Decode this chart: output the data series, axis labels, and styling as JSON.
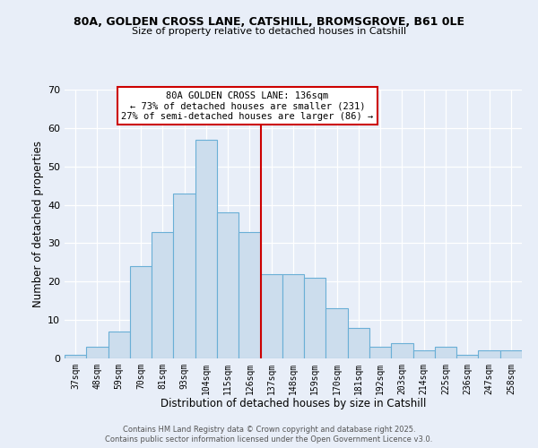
{
  "title_line1": "80A, GOLDEN CROSS LANE, CATSHILL, BROMSGROVE, B61 0LE",
  "title_line2": "Size of property relative to detached houses in Catshill",
  "xlabel": "Distribution of detached houses by size in Catshill",
  "ylabel": "Number of detached properties",
  "bin_labels": [
    "37sqm",
    "48sqm",
    "59sqm",
    "70sqm",
    "81sqm",
    "93sqm",
    "104sqm",
    "115sqm",
    "126sqm",
    "137sqm",
    "148sqm",
    "159sqm",
    "170sqm",
    "181sqm",
    "192sqm",
    "203sqm",
    "214sqm",
    "225sqm",
    "236sqm",
    "247sqm",
    "258sqm"
  ],
  "bar_heights": [
    1,
    3,
    7,
    24,
    33,
    43,
    57,
    38,
    33,
    22,
    22,
    21,
    13,
    8,
    3,
    4,
    2,
    3,
    1,
    2,
    2
  ],
  "bar_color": "#ccdded",
  "bar_edgecolor": "#6aafd6",
  "vline_x": 8.5,
  "vline_color": "#cc0000",
  "ylim": [
    0,
    70
  ],
  "yticks": [
    0,
    10,
    20,
    30,
    40,
    50,
    60,
    70
  ],
  "annotation_title": "80A GOLDEN CROSS LANE: 136sqm",
  "annotation_line2": "← 73% of detached houses are smaller (231)",
  "annotation_line3": "27% of semi-detached houses are larger (86) →",
  "annotation_box_facecolor": "#ffffff",
  "annotation_box_edgecolor": "#cc0000",
  "footer_line1": "Contains HM Land Registry data © Crown copyright and database right 2025.",
  "footer_line2": "Contains public sector information licensed under the Open Government Licence v3.0.",
  "bg_color": "#e8eef8",
  "plot_bg_color": "#e8eef8",
  "grid_color": "#ffffff"
}
